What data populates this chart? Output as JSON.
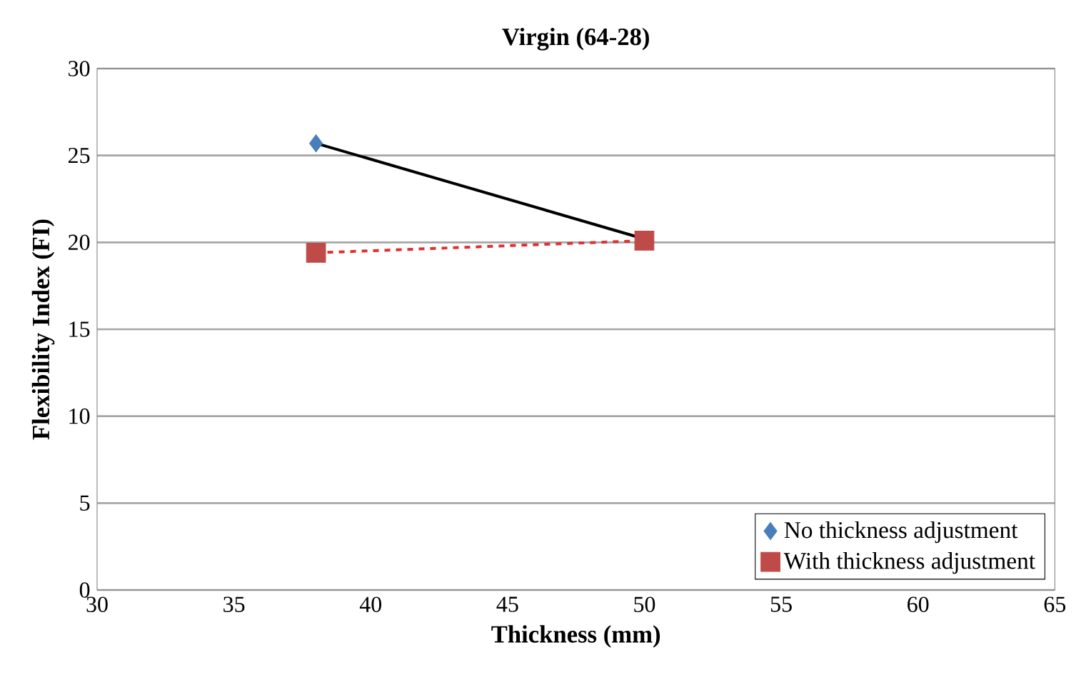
{
  "chart_data": {
    "type": "scatter",
    "title": "Virgin (64-28)",
    "xlabel": "Thickness (mm)",
    "ylabel": "Flexibility Index (FI)",
    "xlim": [
      30,
      65
    ],
    "xticks": [
      30,
      35,
      40,
      45,
      50,
      55,
      60,
      65
    ],
    "ylim": [
      0,
      30
    ],
    "yticks": [
      0,
      5,
      10,
      15,
      20,
      25,
      30
    ],
    "grid": "y",
    "legend": "bottom right",
    "x": [
      38,
      50
    ],
    "series": [
      {
        "type": "line",
        "color": "#000000",
        "line_style": "solid",
        "marker": "none",
        "values": [
          25.7,
          20.2
        ]
      },
      {
        "type": "line",
        "color": "#e03030",
        "line_style": "dashed",
        "marker": "none",
        "values": [
          19.4,
          20.1
        ]
      },
      {
        "name": "No thickness adjustment",
        "color": "#4a7ebb",
        "marker": "diamond",
        "values": [
          25.7,
          null
        ]
      },
      {
        "name": "With thickness adjustment",
        "color": "#be4b48",
        "marker": "square",
        "values": [
          19.4,
          20.1
        ]
      }
    ]
  }
}
